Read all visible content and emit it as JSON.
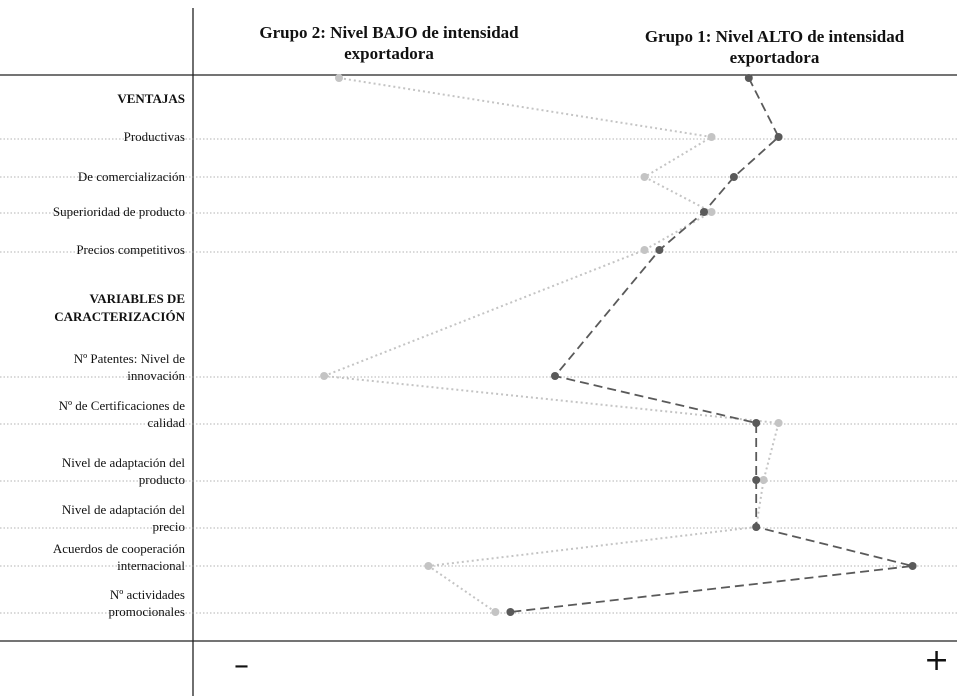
{
  "chart_data": {
    "type": "line",
    "group_headers": [
      "Grupo 2: Nivel BAJO de intensidad exportadora",
      "Grupo 1: Nivel ALTO de intensidad exportadora"
    ],
    "sections": [
      {
        "label": "VENTAJAS",
        "row": 1
      },
      {
        "label": "VARIABLES DE CARACTERIZACIÓN",
        "row": 5
      }
    ],
    "categories": [
      "Productivas",
      "De comercialización",
      "Superioridad de producto",
      "Precios competitivos",
      "Nº Patentes: Nivel de innovación",
      "Nº de Certificaciones de calidad",
      "Nivel de adaptación del producto",
      "Nivel de adaptación del precio",
      "Acuerdos de cooperación internacional",
      "Nº actividades promocionales"
    ],
    "series": [
      {
        "name": "Grupo 2: Nivel BAJO de intensidad exportadora",
        "style": "dotted",
        "color": "#c4c4c4",
        "start": 0.2,
        "values": [
          0.7,
          0.61,
          0.7,
          0.61,
          0.18,
          0.79,
          0.77,
          0.76,
          0.32,
          0.41
        ]
      },
      {
        "name": "Grupo 1: Nivel ALTO de intensidad exportadora",
        "style": "dashed",
        "color": "#5a5a5a",
        "start": 0.75,
        "values": [
          0.79,
          0.73,
          0.69,
          0.63,
          0.49,
          0.76,
          0.76,
          0.76,
          0.97,
          0.43
        ]
      }
    ],
    "axis_min_label": "–",
    "axis_max_label": "+",
    "xlim": [
      0,
      1
    ]
  }
}
